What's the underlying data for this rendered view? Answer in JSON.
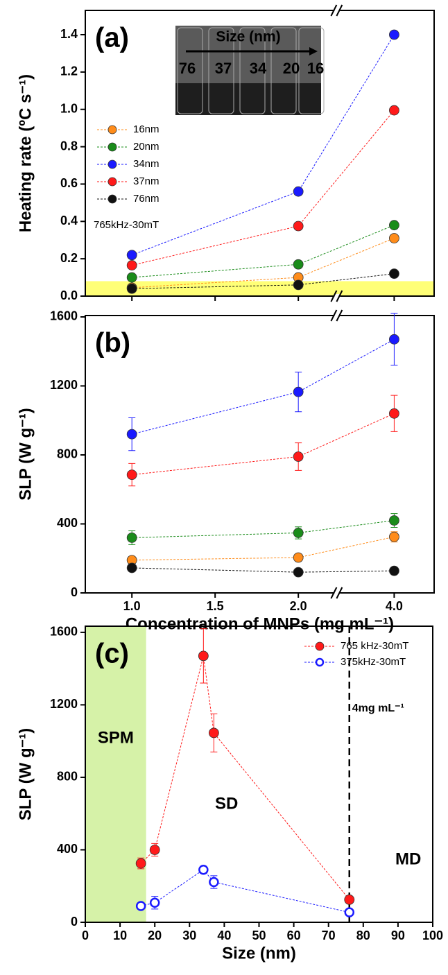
{
  "chart_data": [
    {
      "type": "line",
      "panel_label": "(a)",
      "ylabel": "Heating rate (ºC s⁻¹)",
      "x": [
        1,
        2,
        4
      ],
      "xlim": [
        0.72,
        4.24
      ],
      "xbreak": [
        2.23,
        3.654
      ],
      "xticks": [
        1,
        1.5,
        2,
        4
      ],
      "ylim": [
        0,
        1.53
      ],
      "yticks": [
        {
          "value": 0,
          "label": "0.0"
        },
        0.2,
        0.4,
        0.6,
        0.8,
        {
          "value": 1,
          "label": "1.0"
        },
        1.2,
        1.4
      ],
      "legend": "upper left",
      "series": [
        {
          "name": "16nm",
          "color": "#ff8c1a",
          "values": [
            0.045,
            0.1,
            0.31
          ]
        },
        {
          "name": "20nm",
          "color": "#1a8c1a",
          "values": [
            0.1,
            0.17,
            0.38
          ]
        },
        {
          "name": "34nm",
          "color": "#1a1aff",
          "values": [
            0.22,
            0.56,
            1.4
          ]
        },
        {
          "name": "37nm",
          "color": "#ff1a1a",
          "values": [
            0.165,
            0.375,
            0.995
          ]
        },
        {
          "name": "76nm",
          "color": "#111111",
          "values": [
            0.04,
            0.06,
            0.12
          ]
        }
      ],
      "highlight_band": {
        "ylim": [
          0,
          0.08
        ],
        "color": "#ffff55"
      },
      "annotations": [
        "765kHz-30mT"
      ],
      "inset": {
        "title": "Size (nm)",
        "labels": [
          {
            "text": "76",
            "color": "#000000"
          },
          {
            "text": "37",
            "color": "#ff1a1a"
          },
          {
            "text": "34",
            "color": "#1a1aff"
          },
          {
            "text": "20",
            "color": "#1aa01a"
          },
          {
            "text": "16",
            "color": "#ffaa1a"
          }
        ]
      }
    },
    {
      "type": "line",
      "panel_label": "(b)",
      "ylabel": "SLP (W g⁻¹)",
      "xlabel": "Concentration of MNPs (mg mL⁻¹)",
      "x": [
        1,
        2,
        4
      ],
      "xlim": [
        0.72,
        4.24
      ],
      "xbreak": [
        2.23,
        3.654
      ],
      "xticks": [
        {
          "value": 1,
          "label": "1.0"
        },
        1.5,
        {
          "value": 2,
          "label": "2.0"
        },
        {
          "value": 4,
          "label": "4.0"
        }
      ],
      "ylim": [
        0,
        1608
      ],
      "yticks": [
        0,
        400,
        800,
        1200,
        1600
      ],
      "series": [
        {
          "name": "16nm",
          "color": "#ff8c1a",
          "values": [
            190,
            205,
            325
          ],
          "errors": [
            15,
            20,
            30
          ]
        },
        {
          "name": "20nm",
          "color": "#1a8c1a",
          "values": [
            320,
            348,
            420
          ],
          "errors": [
            40,
            35,
            40
          ]
        },
        {
          "name": "34nm",
          "color": "#1a1aff",
          "values": [
            920,
            1165,
            1470
          ],
          "errors": [
            95,
            115,
            150
          ]
        },
        {
          "name": "37nm",
          "color": "#ff1a1a",
          "values": [
            685,
            790,
            1040
          ],
          "errors": [
            65,
            80,
            105
          ]
        },
        {
          "name": "76nm",
          "color": "#111111",
          "values": [
            145,
            120,
            128
          ],
          "errors": [
            5,
            5,
            5
          ]
        }
      ]
    },
    {
      "type": "scatter",
      "panel_label": "(c)",
      "ylabel": "SLP (W g⁻¹)",
      "xlabel": "Size (nm)",
      "xlim": [
        0,
        100
      ],
      "xticks": [
        0,
        10,
        20,
        30,
        40,
        50,
        60,
        70,
        80,
        90,
        100
      ],
      "ylim": [
        0,
        1634
      ],
      "yticks": [
        0,
        400,
        800,
        1200,
        1600
      ],
      "legend": "upper right",
      "series": [
        {
          "name": "765 kHz-30mT",
          "color": "#ff1a1a",
          "marker": "filled",
          "x": [
            16,
            20,
            34,
            37,
            76
          ],
          "values": [
            325,
            400,
            1470,
            1045,
            125
          ],
          "errors": [
            30,
            35,
            150,
            105,
            10
          ]
        },
        {
          "name": "375kHz-30mT",
          "color": "#1a1aff",
          "marker": "open",
          "x": [
            16,
            20,
            34,
            37,
            76
          ],
          "values": [
            90,
            108,
            290,
            222,
            55
          ],
          "errors": [
            5,
            35,
            20,
            35,
            10
          ]
        }
      ],
      "region": {
        "xlim": [
          0,
          17.5
        ],
        "color": "#d6f2a8",
        "label": "SPM"
      },
      "vline": {
        "x": 76,
        "label": "4mg mL⁻¹"
      },
      "annotations": [
        "SD",
        "MD"
      ]
    }
  ]
}
